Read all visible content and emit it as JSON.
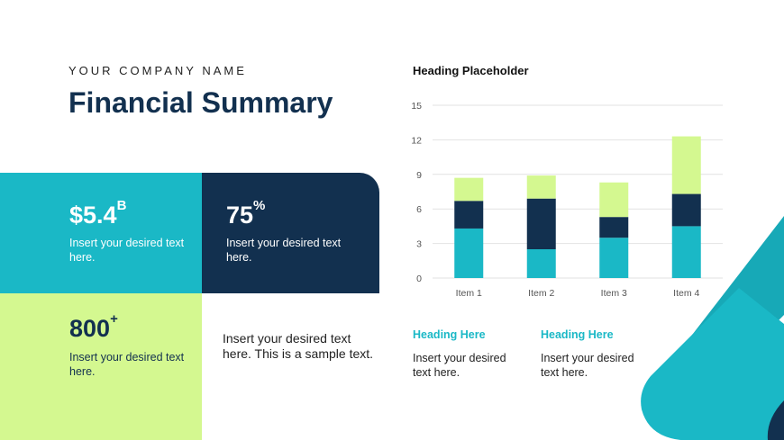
{
  "header": {
    "company": "YOUR COMPANY NAME",
    "title": "Financial Summary"
  },
  "tiles": [
    {
      "value": "$5.4",
      "suffix": "B",
      "text": "Insert your desired text here."
    },
    {
      "value": "75",
      "suffix": "%",
      "text": "Insert your desired text here."
    },
    {
      "value": "800",
      "suffix": "+",
      "text": "Insert your desired text here."
    },
    {
      "text": "Insert your desired text here. This is a sample text."
    }
  ],
  "chart_heading": "Heading Placeholder",
  "chart_data": {
    "type": "bar",
    "stacked": true,
    "categories": [
      "Item 1",
      "Item 2",
      "Item 3",
      "Item 4"
    ],
    "series": [
      {
        "values": [
          4.3,
          2.5,
          3.5,
          4.5
        ],
        "color": "#1ab8c6"
      },
      {
        "values": [
          2.4,
          4.4,
          1.8,
          2.8
        ],
        "color": "#12304f"
      },
      {
        "values": [
          2.0,
          2.0,
          3.0,
          5.0
        ],
        "color": "#d4f890"
      }
    ],
    "ylim": [
      0,
      15
    ],
    "yticks": [
      0,
      3,
      6,
      9,
      12,
      15
    ],
    "grid": true,
    "legend": "none"
  },
  "subsections": [
    {
      "heading": "Heading Here",
      "text": "Insert your desired text here."
    },
    {
      "heading": "Heading Here",
      "text": "Insert your desired text here."
    }
  ],
  "colors": {
    "teal": "#1ab8c6",
    "navy": "#12304f",
    "lime": "#d4f890"
  }
}
